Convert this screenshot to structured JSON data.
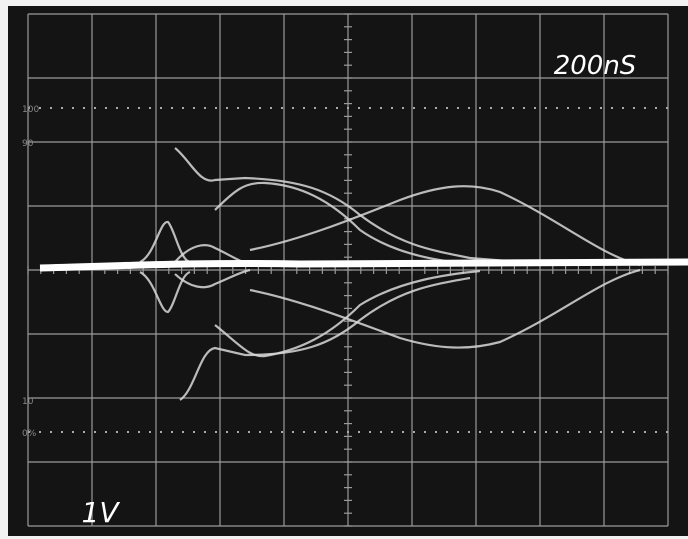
{
  "screen": {
    "timebase": "200nS",
    "scale": "1V",
    "graticule_labels": [
      "100",
      "90",
      "10",
      "0%"
    ]
  }
}
